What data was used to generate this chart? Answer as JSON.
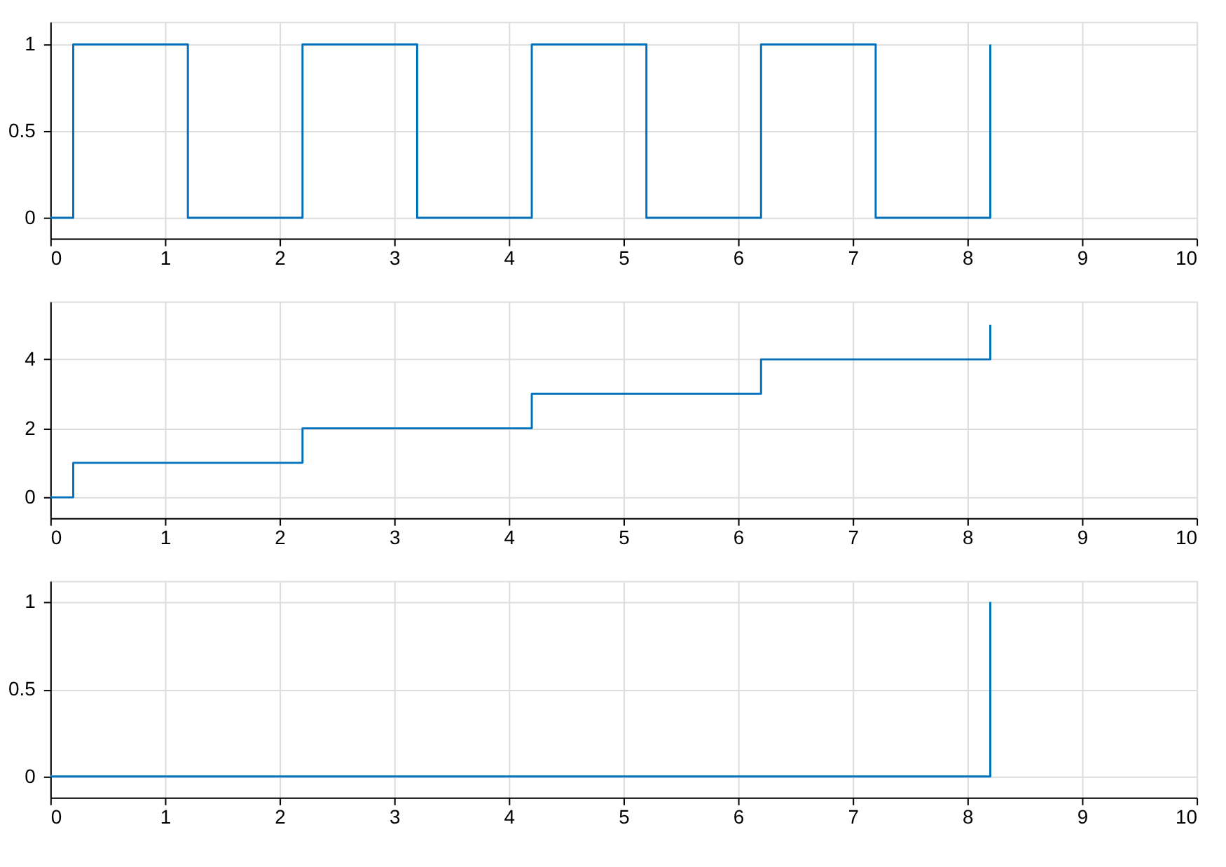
{
  "chart_data": [
    {
      "type": "step",
      "x": [
        0,
        0.2,
        1.2,
        2.2,
        3.2,
        4.2,
        5.2,
        6.2,
        7.2,
        8.2
      ],
      "series": [
        {
          "color": "#0072bd",
          "values": [
            0,
            1,
            0,
            1,
            0,
            1,
            0,
            1,
            0,
            1
          ]
        }
      ],
      "xlim": [
        0,
        10
      ],
      "xticks": [
        0,
        1,
        2,
        3,
        4,
        5,
        6,
        7,
        8,
        9,
        10
      ],
      "ylim": [
        -0.12,
        1.13
      ],
      "yticks": [
        0,
        0.5,
        1
      ],
      "grid": true
    },
    {
      "type": "step",
      "x": [
        0,
        0.2,
        2.2,
        4.2,
        6.2,
        8.2
      ],
      "series": [
        {
          "color": "#0072bd",
          "values": [
            0,
            1,
            2,
            3,
            4,
            5
          ]
        }
      ],
      "xlim": [
        0,
        10
      ],
      "xticks": [
        0,
        1,
        2,
        3,
        4,
        5,
        6,
        7,
        8,
        9,
        10
      ],
      "ylim": [
        -0.6,
        5.68
      ],
      "yticks": [
        0,
        2,
        4
      ],
      "grid": true
    },
    {
      "type": "step",
      "x": [
        0,
        8.2
      ],
      "series": [
        {
          "color": "#0072bd",
          "values": [
            0,
            1
          ]
        }
      ],
      "xlim": [
        0,
        10
      ],
      "xticks": [
        0,
        1,
        2,
        3,
        4,
        5,
        6,
        7,
        8,
        9,
        10
      ],
      "ylim": [
        -0.12,
        1.12
      ],
      "yticks": [
        0,
        0.5,
        1
      ],
      "grid": true
    }
  ]
}
